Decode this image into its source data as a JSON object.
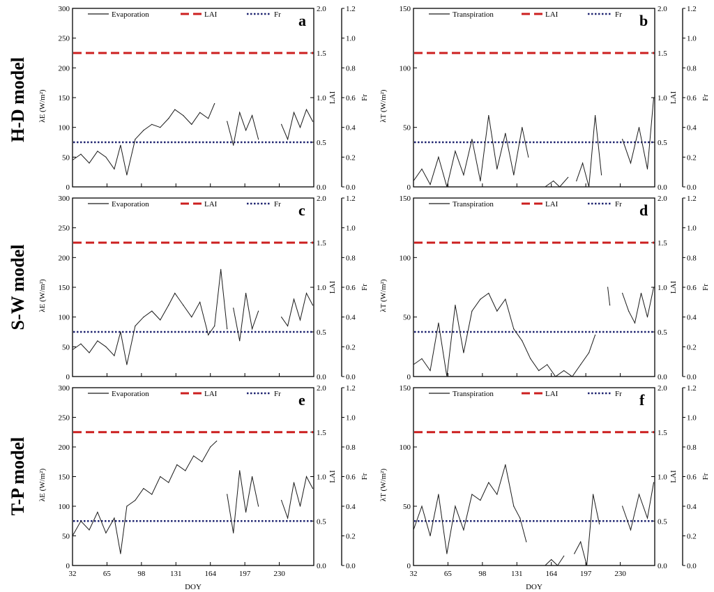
{
  "row_labels": [
    "H-D model",
    "S-W model",
    "T-P model"
  ],
  "colors": {
    "series": "#1a1a1a",
    "lai": "#cc1f1f",
    "fr": "#1f2470",
    "axis": "#000000"
  },
  "chart_data": [
    {
      "panel": "a",
      "type": "line",
      "xlabel": "",
      "ylabel": "λE (W/m²)",
      "y2label": "LAI",
      "y3label": "Fr",
      "xlim": [
        32,
        263
      ],
      "xticks": [
        32,
        65,
        98,
        131,
        164,
        197,
        230
      ],
      "xtick_labels": [
        "",
        "",
        "",
        "",
        "",
        "",
        ""
      ],
      "ylim": [
        0,
        300
      ],
      "yticks": [
        0,
        50,
        100,
        150,
        200,
        250,
        300
      ],
      "y2lim": [
        0,
        2.0
      ],
      "y2ticks": [
        "0.0",
        "0.5",
        "1.0",
        "1.5",
        "2.0"
      ],
      "y3lim": [
        0,
        1.2
      ],
      "y3ticks": [
        "0.0",
        "0.2",
        "0.4",
        "0.6",
        "0.8",
        "1.0",
        "1.2"
      ],
      "legend": [
        "Evaporation",
        "LAI",
        "Fr"
      ],
      "lai": 1.5,
      "fr": 0.3,
      "series": {
        "x": [
          32,
          40,
          48,
          56,
          64,
          72,
          78,
          84,
          92,
          100,
          108,
          116,
          124,
          130,
          138,
          146,
          154,
          162,
          168
        ],
        "y": [
          45,
          55,
          40,
          60,
          50,
          30,
          70,
          20,
          80,
          95,
          105,
          100,
          115,
          130,
          120,
          105,
          125,
          115,
          140
        ]
      },
      "series_extra": [
        {
          "x": [
            180,
            186,
            192,
            198,
            204,
            210
          ],
          "y": [
            110,
            70,
            125,
            95,
            120,
            80
          ]
        },
        {
          "x": [
            232,
            238,
            244,
            250,
            256,
            262
          ],
          "y": [
            105,
            80,
            125,
            100,
            130,
            110
          ]
        }
      ]
    },
    {
      "panel": "b",
      "type": "line",
      "xlabel": "",
      "ylabel": "λT (W/m²)",
      "y2label": "LAI",
      "y3label": "Fr",
      "xlim": [
        32,
        263
      ],
      "xticks": [
        32,
        65,
        98,
        131,
        164,
        197,
        230
      ],
      "xtick_labels": [
        "",
        "",
        "",
        "",
        "",
        "",
        ""
      ],
      "ylim": [
        0,
        150
      ],
      "yticks": [
        0,
        50,
        100,
        150
      ],
      "y2lim": [
        0,
        2.0
      ],
      "y2ticks": [
        "0.0",
        "0.5",
        "1.0",
        "1.5",
        "2.0"
      ],
      "y3lim": [
        0,
        1.2
      ],
      "y3ticks": [
        "0.0",
        "0.2",
        "0.4",
        "0.6",
        "0.8",
        "1.0",
        "1.2"
      ],
      "legend": [
        "Transpiration",
        "LAI",
        "Fr"
      ],
      "lai": 1.5,
      "fr": 0.3,
      "series": {
        "x": [
          32,
          40,
          48,
          56,
          64,
          72,
          80,
          88,
          96,
          104,
          112,
          120,
          128,
          136,
          142
        ],
        "y": [
          5,
          15,
          2,
          25,
          0,
          30,
          10,
          40,
          5,
          60,
          15,
          45,
          10,
          50,
          25
        ]
      },
      "series_extra": [
        {
          "x": [
            158,
            166,
            172,
            180
          ],
          "y": [
            0,
            5,
            0,
            8
          ]
        },
        {
          "x": [
            188,
            194,
            200,
            206,
            212
          ],
          "y": [
            5,
            20,
            0,
            60,
            10
          ]
        },
        {
          "x": [
            232,
            240,
            248,
            256,
            262
          ],
          "y": [
            40,
            20,
            50,
            15,
            75
          ]
        }
      ]
    },
    {
      "panel": "c",
      "type": "line",
      "xlabel": "",
      "ylabel": "λE (W/m²)",
      "y2label": "LAI",
      "y3label": "Fr",
      "xlim": [
        32,
        263
      ],
      "xticks": [
        32,
        65,
        98,
        131,
        164,
        197,
        230
      ],
      "xtick_labels": [
        "",
        "",
        "",
        "",
        "",
        "",
        ""
      ],
      "ylim": [
        0,
        300
      ],
      "yticks": [
        0,
        50,
        100,
        150,
        200,
        250,
        300
      ],
      "y2lim": [
        0,
        2.0
      ],
      "y2ticks": [
        "0.0",
        "0.5",
        "1.0",
        "1.5",
        "2.0"
      ],
      "y3lim": [
        0,
        1.2
      ],
      "y3ticks": [
        "0.0",
        "0.2",
        "0.4",
        "0.6",
        "0.8",
        "1.0",
        "1.2"
      ],
      "legend": [
        "Evaporation",
        "LAI",
        "Fr"
      ],
      "lai": 1.5,
      "fr": 0.3,
      "series": {
        "x": [
          32,
          40,
          48,
          56,
          64,
          72,
          78,
          84,
          92,
          100,
          108,
          116,
          124,
          130,
          138,
          146,
          154,
          162,
          168,
          174,
          180
        ],
        "y": [
          45,
          55,
          40,
          60,
          50,
          35,
          75,
          20,
          85,
          100,
          110,
          95,
          120,
          140,
          120,
          100,
          125,
          70,
          85,
          180,
          80
        ]
      },
      "series_extra": [
        {
          "x": [
            186,
            192,
            198,
            204,
            210
          ],
          "y": [
            115,
            60,
            140,
            80,
            110
          ]
        },
        {
          "x": [
            232,
            238,
            244,
            250,
            256,
            262
          ],
          "y": [
            100,
            85,
            130,
            95,
            140,
            120
          ]
        }
      ]
    },
    {
      "panel": "d",
      "type": "line",
      "xlabel": "",
      "ylabel": "λT (W/m²)",
      "y2label": "LAI",
      "y3label": "Fr",
      "xlim": [
        32,
        263
      ],
      "xticks": [
        32,
        65,
        98,
        131,
        164,
        197,
        230
      ],
      "xtick_labels": [
        "",
        "",
        "",
        "",
        "",
        "",
        ""
      ],
      "ylim": [
        0,
        150
      ],
      "yticks": [
        0,
        50,
        100,
        150
      ],
      "y2lim": [
        0,
        2.0
      ],
      "y2ticks": [
        "0.0",
        "0.5",
        "1.0",
        "1.5",
        "2.0"
      ],
      "y3lim": [
        0,
        1.2
      ],
      "y3ticks": [
        "0.0",
        "0.2",
        "0.4",
        "0.6",
        "0.8",
        "1.0",
        "1.2"
      ],
      "legend": [
        "Transpiration",
        "LAI",
        "Fr"
      ],
      "lai": 1.5,
      "fr": 0.3,
      "series": {
        "x": [
          32,
          40,
          48,
          56,
          64,
          72,
          80,
          88,
          96,
          104,
          112,
          120,
          128,
          136,
          144,
          152,
          160,
          168,
          176,
          184,
          192,
          200,
          206
        ],
        "y": [
          10,
          15,
          5,
          45,
          0,
          60,
          20,
          55,
          65,
          70,
          55,
          65,
          40,
          30,
          15,
          5,
          10,
          0,
          5,
          0,
          10,
          20,
          35
        ]
      },
      "series_extra": [
        {
          "x": [
            218,
            220
          ],
          "y": [
            75,
            60
          ]
        },
        {
          "x": [
            232,
            238,
            244,
            250,
            256,
            262
          ],
          "y": [
            70,
            55,
            45,
            70,
            50,
            75
          ]
        }
      ]
    },
    {
      "panel": "e",
      "type": "line",
      "xlabel": "DOY",
      "ylabel": "λE (W/m²)",
      "y2label": "LAI",
      "y3label": "Fr",
      "xlim": [
        32,
        263
      ],
      "xticks": [
        32,
        65,
        98,
        131,
        164,
        197,
        230
      ],
      "xtick_labels": [
        "32",
        "65",
        "98",
        "131",
        "164",
        "197",
        "230"
      ],
      "ylim": [
        0,
        300
      ],
      "yticks": [
        0,
        50,
        100,
        150,
        200,
        250,
        300
      ],
      "y2lim": [
        0,
        2.0
      ],
      "y2ticks": [
        "0.0",
        "0.5",
        "1.0",
        "1.5",
        "2.0"
      ],
      "y3lim": [
        0,
        1.2
      ],
      "y3ticks": [
        "0.0",
        "0.2",
        "0.4",
        "0.6",
        "0.8",
        "1.0",
        "1.2"
      ],
      "legend": [
        "Evaporation",
        "LAI",
        "Fr"
      ],
      "lai": 1.5,
      "fr": 0.3,
      "series": {
        "x": [
          32,
          40,
          48,
          56,
          64,
          72,
          78,
          84,
          92,
          100,
          108,
          116,
          124,
          132,
          140,
          148,
          156,
          164,
          170
        ],
        "y": [
          50,
          75,
          60,
          90,
          55,
          80,
          20,
          100,
          110,
          130,
          120,
          150,
          140,
          170,
          160,
          185,
          175,
          200,
          210
        ]
      },
      "series_extra": [
        {
          "x": [
            180,
            186,
            192,
            198,
            204,
            210
          ],
          "y": [
            120,
            55,
            160,
            90,
            150,
            100
          ]
        },
        {
          "x": [
            232,
            238,
            244,
            250,
            256,
            262
          ],
          "y": [
            110,
            80,
            140,
            100,
            150,
            130
          ]
        }
      ]
    },
    {
      "panel": "f",
      "type": "line",
      "xlabel": "DOY",
      "ylabel": "λT (W/m²)",
      "y2label": "LAI",
      "y3label": "Fr",
      "xlim": [
        32,
        263
      ],
      "xticks": [
        32,
        65,
        98,
        131,
        164,
        197,
        230
      ],
      "xtick_labels": [
        "32",
        "65",
        "98",
        "131",
        "164",
        "197",
        "230"
      ],
      "ylim": [
        0,
        150
      ],
      "yticks": [
        0,
        50,
        100,
        150
      ],
      "y2lim": [
        0,
        2.0
      ],
      "y2ticks": [
        "0.0",
        "0.5",
        "1.0",
        "1.5",
        "2.0"
      ],
      "y3lim": [
        0,
        1.2
      ],
      "y3ticks": [
        "0.0",
        "0.2",
        "0.4",
        "0.6",
        "0.8",
        "1.0",
        "1.2"
      ],
      "legend": [
        "Transpiration",
        "LAI",
        "Fr"
      ],
      "lai": 1.5,
      "fr": 0.3,
      "series": {
        "x": [
          32,
          40,
          48,
          56,
          64,
          72,
          80,
          88,
          96,
          104,
          112,
          120,
          128,
          134,
          140
        ],
        "y": [
          30,
          50,
          25,
          60,
          10,
          50,
          30,
          60,
          55,
          70,
          60,
          85,
          50,
          40,
          20
        ]
      },
      "series_extra": [
        {
          "x": [
            158,
            164,
            170,
            176
          ],
          "y": [
            0,
            5,
            0,
            8
          ]
        },
        {
          "x": [
            186,
            192,
            198,
            204,
            210
          ],
          "y": [
            10,
            20,
            0,
            60,
            35
          ]
        },
        {
          "x": [
            232,
            240,
            248,
            256,
            262
          ],
          "y": [
            50,
            30,
            60,
            40,
            70
          ]
        }
      ]
    }
  ]
}
